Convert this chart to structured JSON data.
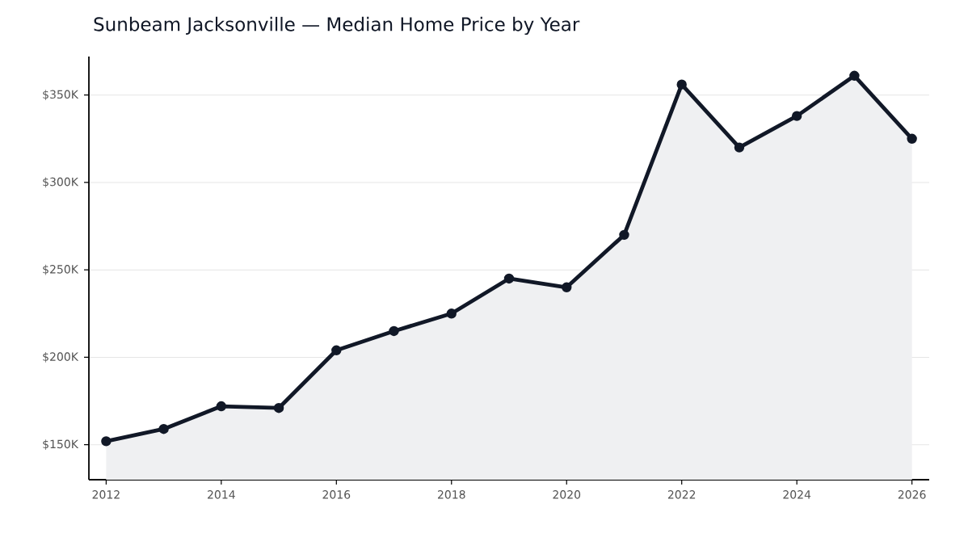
{
  "chart_data": {
    "type": "area",
    "title": "Sunbeam Jacksonville — Median Home Price by Year",
    "x": [
      2012,
      2013,
      2014,
      2015,
      2016,
      2017,
      2018,
      2019,
      2020,
      2021,
      2022,
      2023,
      2024,
      2025,
      2026
    ],
    "series": [
      {
        "color": "#111827",
        "values": [
          152,
          159,
          172,
          171,
          204,
          215,
          225,
          245,
          240,
          270,
          356,
          320,
          338,
          361,
          325
        ]
      }
    ],
    "xlim": [
      2011.7,
      2026.3
    ],
    "xticks": [
      2012,
      2014,
      2016,
      2018,
      2020,
      2022,
      2024,
      2026
    ],
    "ylim": [
      130,
      372
    ],
    "yticks": [
      {
        "value": 150,
        "label": "$150K"
      },
      {
        "value": 200,
        "label": "$200K"
      },
      {
        "value": 250,
        "label": "$250K"
      },
      {
        "value": 300,
        "label": "$300K"
      },
      {
        "value": 350,
        "label": "$350K"
      }
    ],
    "grid": "y",
    "marker": "circle",
    "line_style": "solid"
  }
}
